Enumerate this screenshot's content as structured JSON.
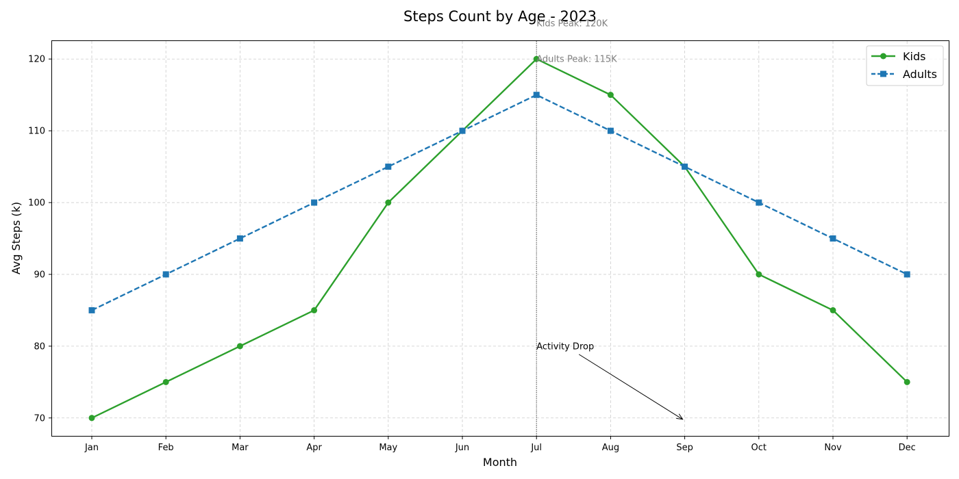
{
  "chart_data": {
    "type": "line",
    "title": "Steps Count by Age - 2023",
    "xlabel": "Month",
    "ylabel": "Avg Steps (k)",
    "categories": [
      "Jan",
      "Feb",
      "Mar",
      "Apr",
      "May",
      "Jun",
      "Jul",
      "Aug",
      "Sep",
      "Oct",
      "Nov",
      "Dec"
    ],
    "ylim": [
      67.5,
      122.5
    ],
    "yticks": [
      70,
      80,
      90,
      100,
      110,
      120
    ],
    "grid": true,
    "legend_position": "top-right",
    "series": [
      {
        "name": "Kids",
        "values": [
          70,
          75,
          80,
          85,
          100,
          110,
          120,
          115,
          105,
          90,
          85,
          75
        ],
        "color": "#2ca02c",
        "line_style": "solid",
        "marker": "circle"
      },
      {
        "name": "Adults",
        "values": [
          85,
          90,
          95,
          100,
          105,
          110,
          115,
          110,
          105,
          100,
          95,
          90
        ],
        "color": "#1f77b4",
        "line_style": "dashed",
        "marker": "square"
      }
    ],
    "annotations": [
      {
        "text": "Kids Peak: 120K",
        "x": "Jul",
        "y": 125,
        "color": "#808080"
      },
      {
        "text": "Adults Peak: 115K",
        "x": "Jul",
        "y": 120,
        "color": "#808080"
      },
      {
        "text": "Activity Drop",
        "x": "Jul",
        "y": 80,
        "arrow_to": {
          "x": "Sep",
          "y": 70
        },
        "color": "#000000"
      }
    ],
    "vline": {
      "x": "Jul",
      "color": "#555555",
      "style": "dotted"
    }
  }
}
